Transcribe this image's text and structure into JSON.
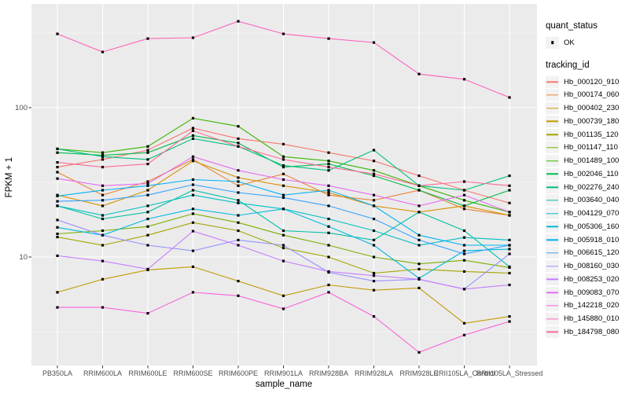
{
  "chart_data": {
    "type": "line",
    "title": "",
    "xlabel": "sample_name",
    "ylabel": "FPKM + 1",
    "y_scale": "log10",
    "y_ticks": [
      10,
      100
    ],
    "y_minor_ticks": [
      3.162,
      31.62,
      316.2
    ],
    "ylim": [
      1.9,
      495
    ],
    "grid": "white major and minor gridlines on gray panel",
    "legend_position": "right",
    "point_shape": "small black square (quant_status = OK)",
    "categories": [
      "PB350LA",
      "RRIM600LA",
      "RRIM600LE",
      "RRIM600SE",
      "RRIM600PE",
      "RRIM901LA",
      "RRIM928BA",
      "RRIM928LA",
      "RRIM928LE",
      "RRII105LA_Control",
      "RRII105LA_Stressed"
    ],
    "series": [
      {
        "name": "Hb_000120_910",
        "color": "#F8766D",
        "values": [
          40,
          45,
          52,
          73,
          62,
          57,
          50,
          44,
          35,
          28,
          23
        ]
      },
      {
        "name": "Hb_000174_060",
        "color": "#EA8331",
        "values": [
          37,
          26,
          32,
          45,
          30,
          36,
          26,
          24,
          28,
          21,
          19
        ]
      },
      {
        "name": "Hb_000402_230",
        "color": "#D89000",
        "values": [
          26,
          22,
          28,
          44,
          34,
          30,
          27,
          22,
          20,
          22,
          19
        ]
      },
      {
        "name": "Hb_000739_180",
        "color": "#C09B00",
        "values": [
          5.8,
          7.1,
          8.2,
          8.6,
          6.9,
          5.5,
          6.5,
          6.0,
          6.2,
          3.6,
          4.0
        ]
      },
      {
        "name": "Hb_001135_120",
        "color": "#A3A500",
        "values": [
          13.6,
          12,
          14,
          17,
          15,
          11.5,
          10,
          7.8,
          8.3,
          8.0,
          7.8
        ]
      },
      {
        "name": "Hb_001147_110",
        "color": "#7CAE00",
        "values": [
          14.3,
          15,
          16,
          19.5,
          17,
          14,
          12,
          10,
          9,
          9.5,
          8.5
        ]
      },
      {
        "name": "Hb_001489_100",
        "color": "#39B600",
        "values": [
          53,
          50,
          55,
          85,
          75,
          47,
          44,
          38,
          30,
          24,
          20
        ]
      },
      {
        "name": "Hb_002046_110",
        "color": "#00BB4E",
        "values": [
          50,
          48,
          50,
          65,
          58,
          40,
          42,
          35,
          28,
          22,
          28
        ]
      },
      {
        "name": "Hb_002276_240",
        "color": "#00BF7D",
        "values": [
          53,
          47,
          45,
          62,
          55,
          41,
          38,
          52,
          30,
          28,
          35
        ]
      },
      {
        "name": "Hb_003640_040",
        "color": "#00C1A3",
        "values": [
          22,
          18,
          20,
          28,
          24,
          15,
          14.5,
          13,
          20,
          15,
          8.6
        ]
      },
      {
        "name": "Hb_004129_070",
        "color": "#00BFC4",
        "values": [
          22,
          19,
          22,
          26,
          23,
          21,
          18,
          15,
          12,
          13.5,
          13
        ]
      },
      {
        "name": "Hb_005306_160",
        "color": "#00BAE0",
        "values": [
          15.8,
          14,
          18,
          21,
          19,
          21,
          16,
          12,
          7.2,
          11,
          11.3
        ]
      },
      {
        "name": "Hb_005918_010",
        "color": "#00B0F6",
        "values": [
          25.6,
          28,
          30,
          33,
          32,
          26,
          28,
          22,
          14,
          12,
          12
        ]
      },
      {
        "name": "Hb_006615_120",
        "color": "#35A2FF",
        "values": [
          23.6,
          24,
          26,
          30.5,
          27,
          25,
          22,
          18,
          13,
          10.5,
          12
        ]
      },
      {
        "name": "Hb_008160_030",
        "color": "#9590FF",
        "values": [
          17.7,
          14,
          12,
          11,
          13,
          12,
          7.9,
          6.9,
          7.1,
          6.1,
          10.5
        ]
      },
      {
        "name": "Hb_008253_020",
        "color": "#C77CFF",
        "values": [
          10.2,
          9.4,
          8.3,
          14.9,
          12,
          9.4,
          8.0,
          7.5,
          7.1,
          6.1,
          6.5
        ]
      },
      {
        "name": "Hb_009083_070",
        "color": "#E76BF3",
        "values": [
          33.5,
          30,
          31,
          47,
          38,
          33,
          30,
          26,
          22,
          26,
          20
        ]
      },
      {
        "name": "Hb_142218_020",
        "color": "#FA62DB",
        "values": [
          4.6,
          4.6,
          4.2,
          5.8,
          5.5,
          4.5,
          5.8,
          4.0,
          2.3,
          3.0,
          3.7
        ]
      },
      {
        "name": "Hb_145880_010",
        "color": "#FF62BC",
        "values": [
          312,
          236,
          290,
          294,
          379,
          312,
          290,
          273,
          168,
          155,
          117
        ]
      },
      {
        "name": "Hb_184798_080",
        "color": "#FF6A98",
        "values": [
          43,
          40,
          42,
          70,
          55,
          45,
          40,
          36,
          30,
          32,
          30
        ]
      }
    ]
  },
  "legend": {
    "quant_status_title": "quant_status",
    "ok_label": "OK",
    "tracking_id_title": "tracking_id"
  },
  "style": {
    "panel_bg": "#EBEBEB",
    "grid_color": "#FFFFFF",
    "axis_text_color": "#4D4D4D",
    "tick_color": "#333333",
    "point_color": "#000000",
    "legend_key_bg": "#F2F2F2"
  }
}
